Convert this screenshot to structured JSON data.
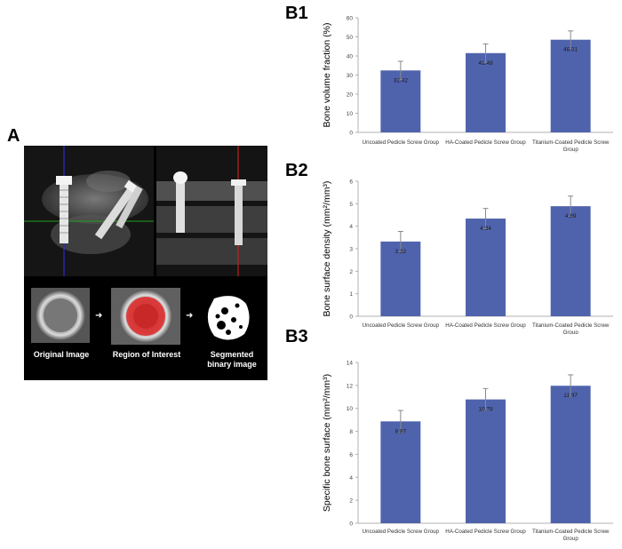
{
  "panels": {
    "a_letter": "A",
    "b1_letter": "B1",
    "b2_letter": "B2",
    "b3_letter": "B3"
  },
  "image_panel": {
    "labels": [
      "Original Image",
      "Region of Interest",
      "Segmented binary image"
    ]
  },
  "colors": {
    "bar": "#4f63ad",
    "axis": "#b0b0b0",
    "grid": "#d9d9d9",
    "roi": "#e03030"
  },
  "chart_data": [
    {
      "type": "bar",
      "id": "B1",
      "categories": [
        "Uncoated Pedicle Screw Group",
        "HA-Coated Pedicle Screw Group",
        "Titanium-Coated Pedicle Screw Group"
      ],
      "values": [
        32.42,
        41.49,
        48.51
      ],
      "value_labels": [
        "32.42",
        "41.49",
        "48.51"
      ],
      "errors": [
        4.8,
        4.8,
        4.6
      ],
      "ylabel": "Bone volume fraction (%)",
      "ylim": [
        0,
        60
      ],
      "yticks": [
        "0",
        "10",
        "20",
        "30",
        "40",
        "50",
        "60"
      ],
      "ytick_values": [
        0,
        10,
        20,
        30,
        40,
        50,
        60
      ],
      "grid": false
    },
    {
      "type": "bar",
      "id": "B2",
      "categories": [
        "Uncoated Pedicle Screw Group",
        "HA-Coated Pedicle Screw Group",
        "Titanium-Coated Pedicle Screw Group"
      ],
      "values": [
        3.32,
        4.34,
        4.89
      ],
      "value_labels": [
        "3.32",
        "4.34",
        "4.89"
      ],
      "errors": [
        0.45,
        0.45,
        0.45
      ],
      "ylabel": "Bone surface  density (mm²/mm³)",
      "ylim": [
        0,
        6
      ],
      "yticks": [
        "0",
        "1",
        "2",
        "3",
        "4",
        "5",
        "6"
      ],
      "ytick_values": [
        0,
        1,
        2,
        3,
        4,
        5,
        6
      ],
      "grid": false
    },
    {
      "type": "bar",
      "id": "B3",
      "categories": [
        "Uncoated Pedicle Screw Group",
        "HA-Coated Pedicle Screw Group",
        "Titanium-Coated Pedicle Screw Group"
      ],
      "values": [
        8.87,
        10.78,
        11.97
      ],
      "value_labels": [
        "8.87",
        "10.78",
        "11.97"
      ],
      "errors": [
        0.95,
        0.95,
        0.95
      ],
      "ylabel": "Specific bone surface (mm²/mm³)",
      "ylim": [
        0,
        14
      ],
      "yticks": [
        "0",
        "2",
        "4",
        "6",
        "8",
        "10",
        "12",
        "14"
      ],
      "ytick_values": [
        0,
        2,
        4,
        6,
        8,
        10,
        12,
        14
      ],
      "grid": false
    }
  ]
}
